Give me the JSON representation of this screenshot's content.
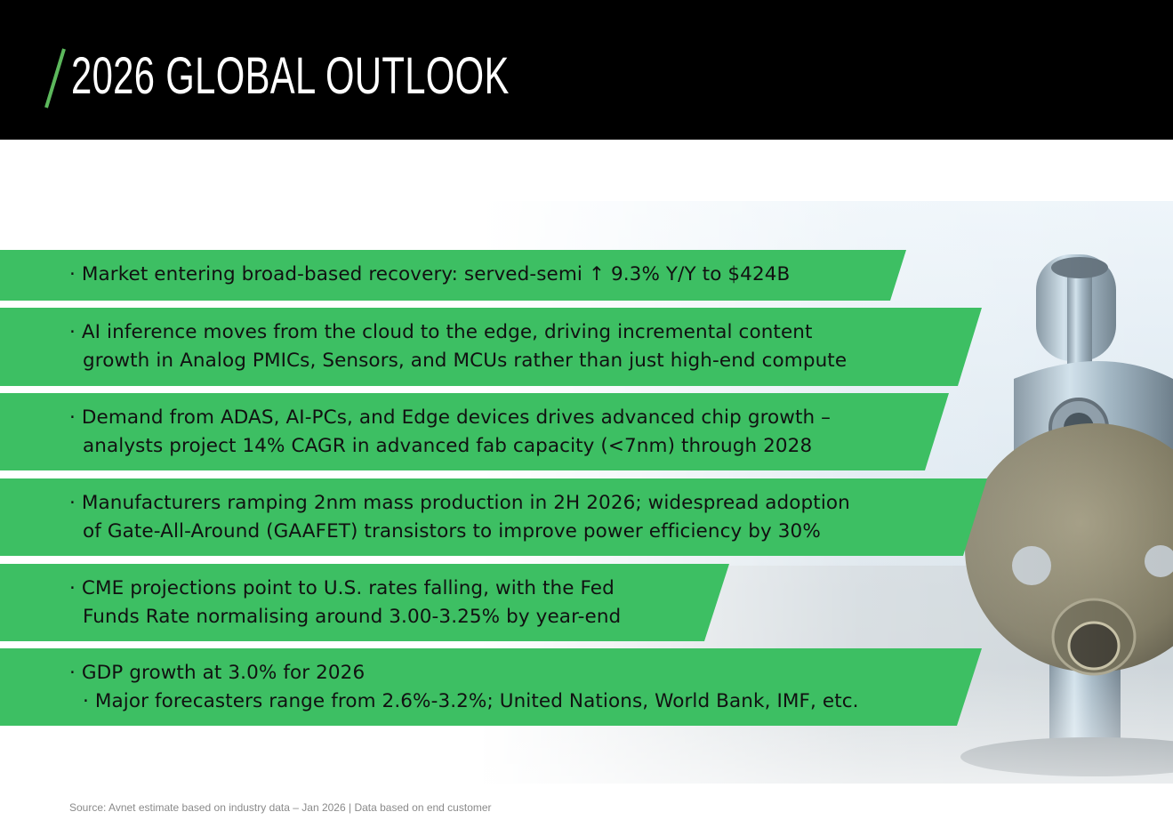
{
  "header": {
    "title": "2026 GLOBAL OUTLOOK",
    "slash_color": "#5cb85c",
    "background": "#000000"
  },
  "bullet_char": "·",
  "band_color": "#3dbf63",
  "bullets": [
    {
      "lines": [
        "· Market entering broad-based recovery: served-semi ↑ 9.3% Y/Y to $424B"
      ]
    },
    {
      "lines": [
        "· AI inference moves from the cloud to the edge, driving incremental content",
        "growth in Analog PMICs, Sensors, and MCUs rather than just high-end compute"
      ]
    },
    {
      "lines": [
        "· Demand from ADAS, AI-PCs, and Edge devices drives advanced chip growth –",
        "analysts project 14% CAGR in advanced fab capacity (<7nm) through 2028"
      ]
    },
    {
      "lines": [
        "· Manufacturers ramping 2nm mass production in 2H 2026; widespread adoption",
        "of Gate-All-Around (GAAFET) transistors to improve power efficiency by 30%"
      ]
    },
    {
      "lines": [
        "· CME projections point to U.S. rates falling, with the Fed",
        "Funds Rate normalising around 3.00-3.25% by year-end"
      ]
    },
    {
      "lines": [
        "· GDP growth at 3.0% for 2026",
        "· Major forecasters range from 2.6%-3.2%; United Nations, World Bank, IMF, etc."
      ]
    }
  ],
  "image": {
    "subject": "coin-operated-telescope-viewer"
  },
  "footer": {
    "source": "Source: Avnet estimate based on industry data – Jan 2026 | Data based on end customer"
  }
}
